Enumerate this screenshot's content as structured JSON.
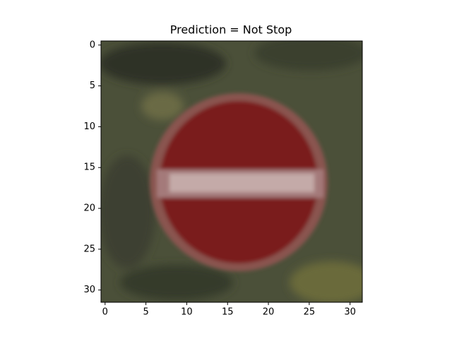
{
  "chart_data": {
    "type": "image",
    "title": "Prediction = Not Stop",
    "xlim": [
      -0.5,
      31.5
    ],
    "ylim": [
      31.5,
      -0.5
    ],
    "xticks": [
      0,
      5,
      10,
      15,
      20,
      25,
      30
    ],
    "yticks": [
      0,
      5,
      10,
      15,
      20,
      25,
      30
    ]
  }
}
